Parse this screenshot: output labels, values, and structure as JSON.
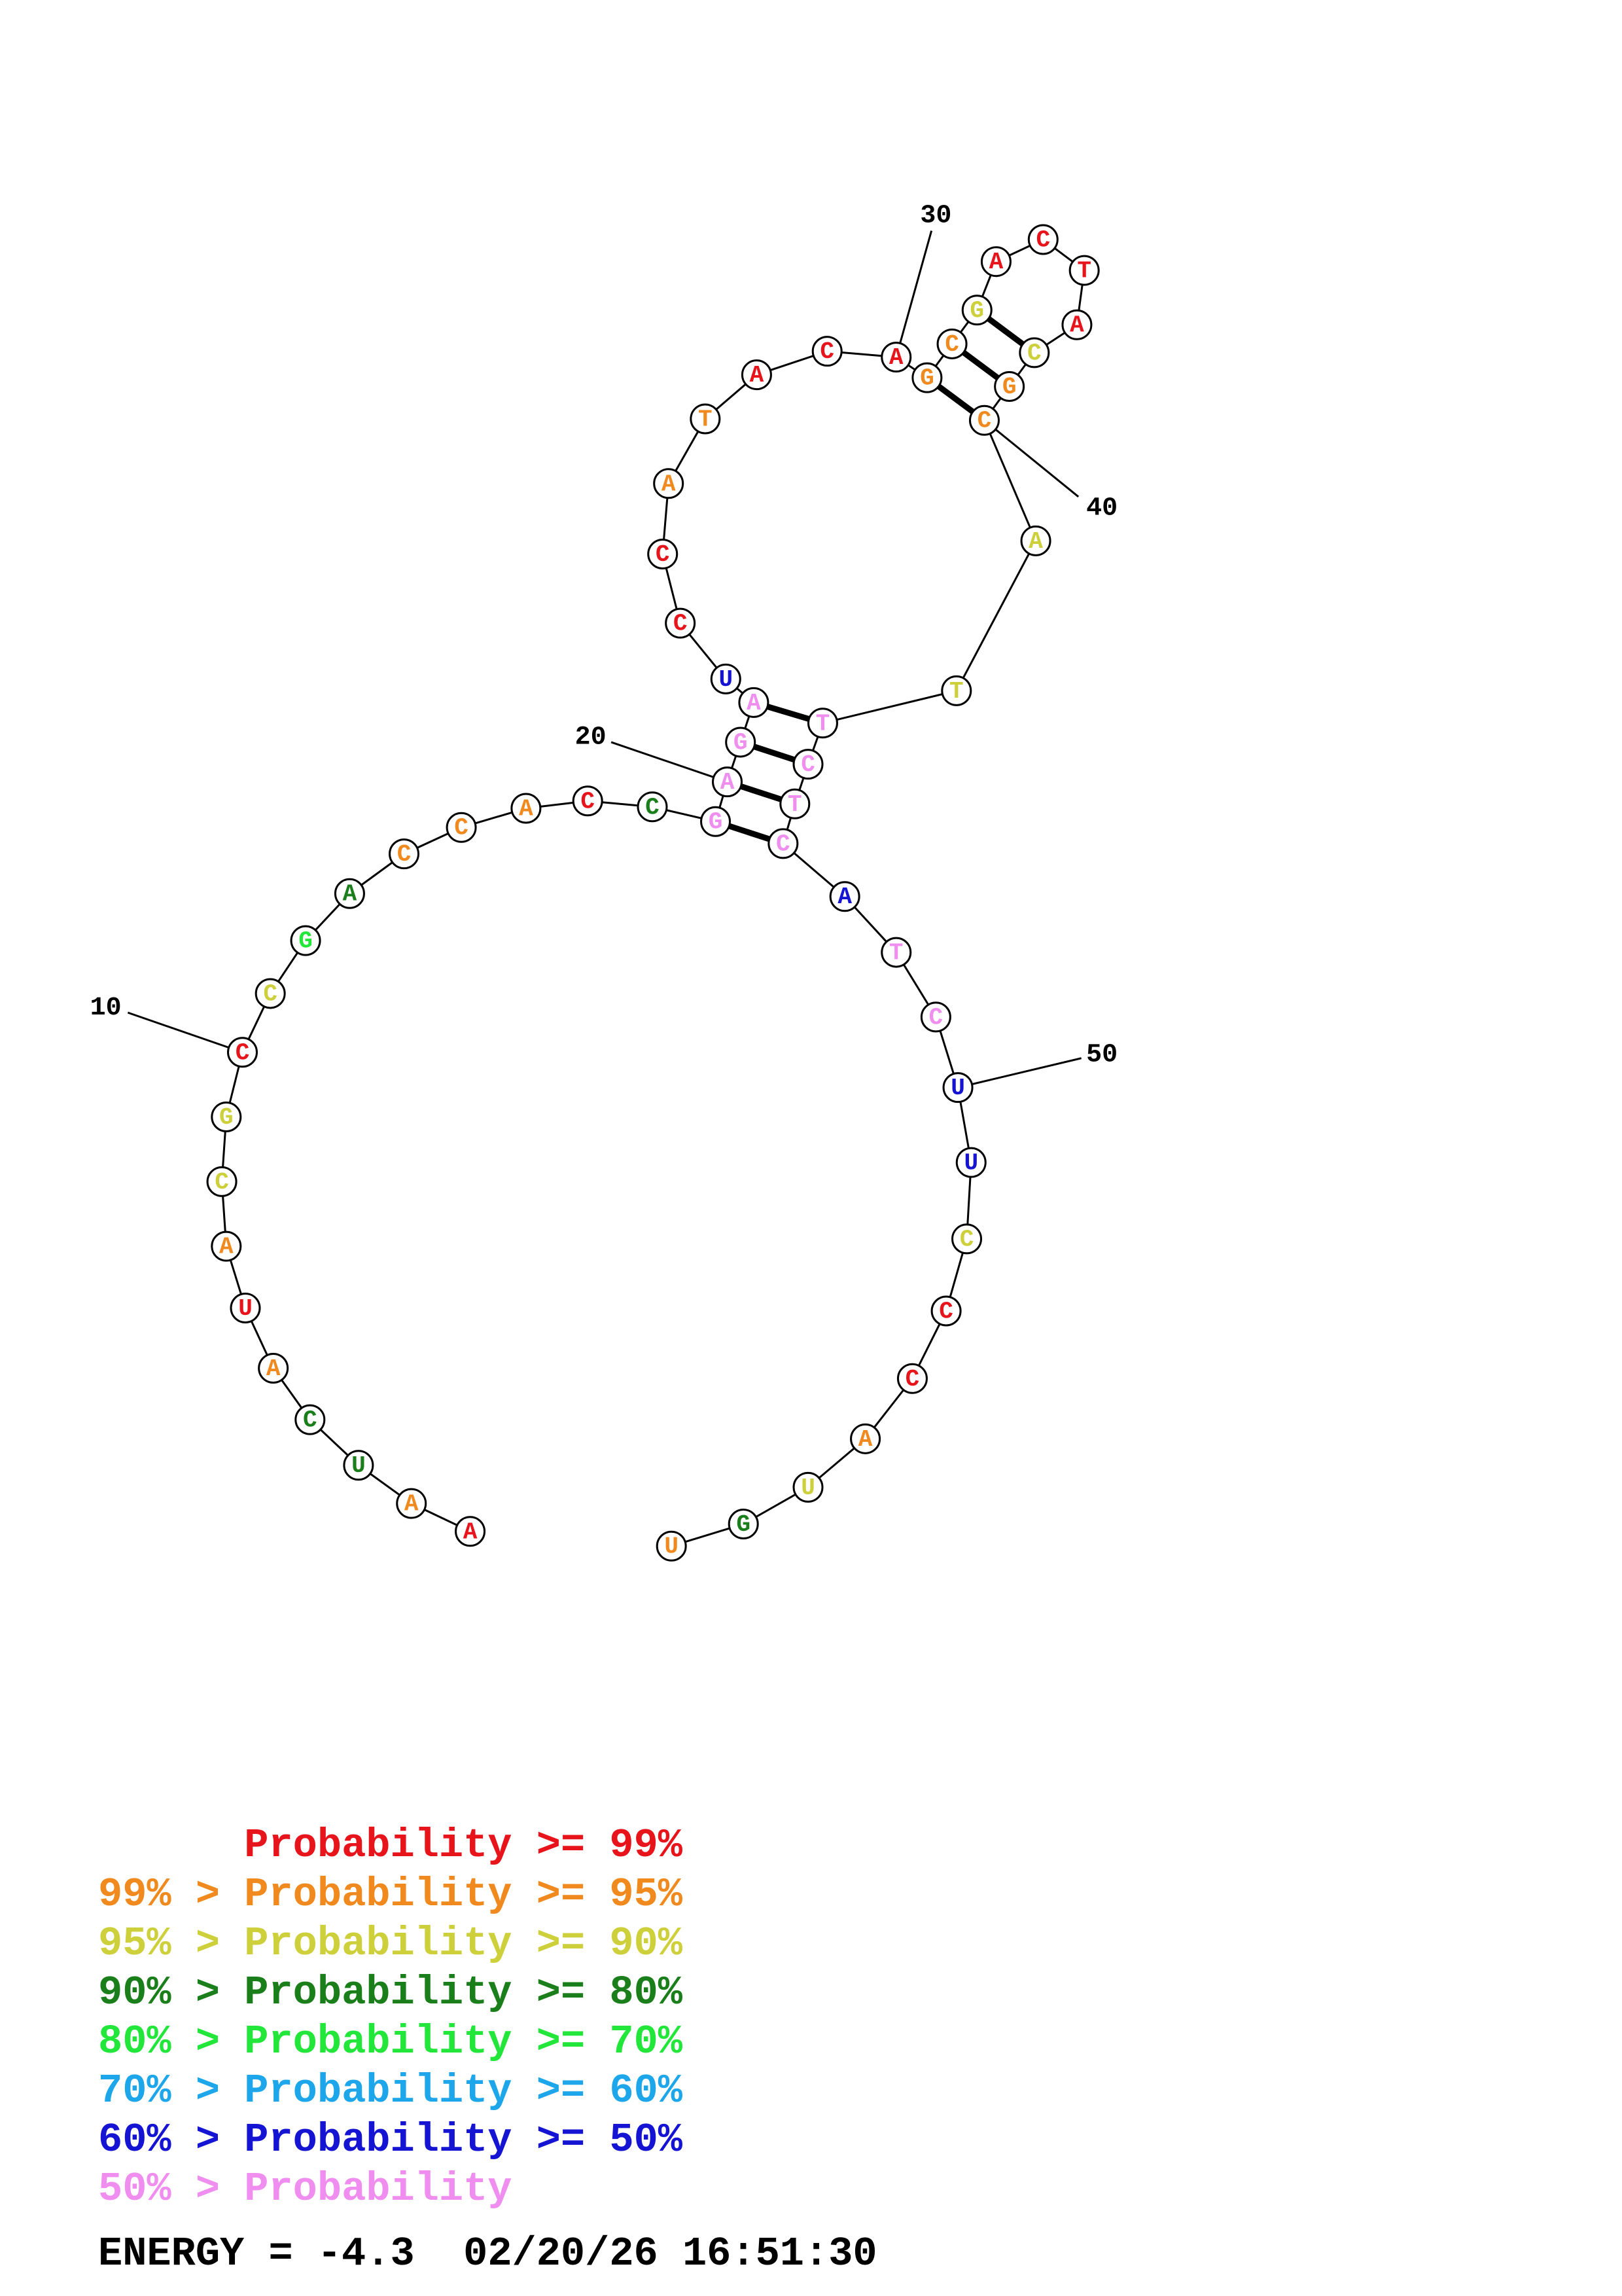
{
  "tiers": {
    "99": "#e8141c",
    "95": "#f08a1e",
    "90": "#cdd03a",
    "80": "#1a7f1a",
    "70": "#22e63a",
    "60": "#1ea6ea",
    "50": "#1414d2",
    "lt50": "#f08ef0"
  },
  "nucleotides": [
    {
      "index": 1,
      "base": "A",
      "tier": "99"
    },
    {
      "index": 2,
      "base": "A",
      "tier": "95"
    },
    {
      "index": 3,
      "base": "U",
      "tier": "80"
    },
    {
      "index": 4,
      "base": "C",
      "tier": "80"
    },
    {
      "index": 5,
      "base": "A",
      "tier": "95"
    },
    {
      "index": 6,
      "base": "U",
      "tier": "99"
    },
    {
      "index": 7,
      "base": "A",
      "tier": "95"
    },
    {
      "index": 8,
      "base": "C",
      "tier": "90"
    },
    {
      "index": 9,
      "base": "G",
      "tier": "90"
    },
    {
      "index": 10,
      "base": "C",
      "tier": "99"
    },
    {
      "index": 11,
      "base": "C",
      "tier": "90"
    },
    {
      "index": 12,
      "base": "G",
      "tier": "70"
    },
    {
      "index": 13,
      "base": "A",
      "tier": "80"
    },
    {
      "index": 14,
      "base": "C",
      "tier": "95"
    },
    {
      "index": 15,
      "base": "C",
      "tier": "95"
    },
    {
      "index": 16,
      "base": "A",
      "tier": "95"
    },
    {
      "index": 17,
      "base": "C",
      "tier": "99"
    },
    {
      "index": 18,
      "base": "C",
      "tier": "80"
    },
    {
      "index": 19,
      "base": "G",
      "tier": "lt50"
    },
    {
      "index": 20,
      "base": "A",
      "tier": "lt50"
    },
    {
      "index": 21,
      "base": "G",
      "tier": "lt50"
    },
    {
      "index": 22,
      "base": "A",
      "tier": "lt50"
    },
    {
      "index": 23,
      "base": "U",
      "tier": "50"
    },
    {
      "index": 24,
      "base": "C",
      "tier": "99"
    },
    {
      "index": 25,
      "base": "C",
      "tier": "99"
    },
    {
      "index": 26,
      "base": "A",
      "tier": "95"
    },
    {
      "index": 27,
      "base": "T",
      "tier": "95"
    },
    {
      "index": 28,
      "base": "A",
      "tier": "99"
    },
    {
      "index": 29,
      "base": "C",
      "tier": "99"
    },
    {
      "index": 30,
      "base": "A",
      "tier": "99"
    },
    {
      "index": 31,
      "base": "G",
      "tier": "95"
    },
    {
      "index": 32,
      "base": "C",
      "tier": "95"
    },
    {
      "index": 33,
      "base": "G",
      "tier": "90"
    },
    {
      "index": 34,
      "base": "A",
      "tier": "99"
    },
    {
      "index": 35,
      "base": "C",
      "tier": "99"
    },
    {
      "index": 36,
      "base": "T",
      "tier": "99"
    },
    {
      "index": 37,
      "base": "A",
      "tier": "99"
    },
    {
      "index": 38,
      "base": "C",
      "tier": "90"
    },
    {
      "index": 39,
      "base": "G",
      "tier": "95"
    },
    {
      "index": 40,
      "base": "C",
      "tier": "95"
    },
    {
      "index": 41,
      "base": "A",
      "tier": "90"
    },
    {
      "index": 42,
      "base": "T",
      "tier": "90"
    },
    {
      "index": 43,
      "base": "T",
      "tier": "lt50"
    },
    {
      "index": 44,
      "base": "C",
      "tier": "lt50"
    },
    {
      "index": 45,
      "base": "T",
      "tier": "lt50"
    },
    {
      "index": 46,
      "base": "C",
      "tier": "lt50"
    },
    {
      "index": 47,
      "base": "A",
      "tier": "50"
    },
    {
      "index": 48,
      "base": "T",
      "tier": "lt50"
    },
    {
      "index": 49,
      "base": "C",
      "tier": "lt50"
    },
    {
      "index": 50,
      "base": "U",
      "tier": "50"
    },
    {
      "index": 51,
      "base": "U",
      "tier": "50"
    },
    {
      "index": 52,
      "base": "C",
      "tier": "90"
    },
    {
      "index": 53,
      "base": "C",
      "tier": "99"
    },
    {
      "index": 54,
      "base": "C",
      "tier": "99"
    },
    {
      "index": 55,
      "base": "A",
      "tier": "95"
    },
    {
      "index": 56,
      "base": "U",
      "tier": "90"
    },
    {
      "index": 57,
      "base": "G",
      "tier": "80"
    },
    {
      "index": 58,
      "base": "U",
      "tier": "95"
    }
  ],
  "pairs": [
    [
      19,
      46
    ],
    [
      20,
      45
    ],
    [
      21,
      44
    ],
    [
      22,
      43
    ],
    [
      31,
      40
    ],
    [
      32,
      39
    ],
    [
      33,
      38
    ]
  ],
  "position_labels": [
    {
      "index": 10,
      "text": "10"
    },
    {
      "index": 20,
      "text": "20"
    },
    {
      "index": 30,
      "text": "30"
    },
    {
      "index": 40,
      "text": "40"
    },
    {
      "index": 50,
      "text": "50"
    }
  ],
  "legend": [
    {
      "left": "",
      "sep": "",
      "mid": "Probability",
      "op": " >= ",
      "right": "99%",
      "tier": "99"
    },
    {
      "left": "99%",
      "sep": " > ",
      "mid": "Probability",
      "op": " >= ",
      "right": "95%",
      "tier": "95"
    },
    {
      "left": "95%",
      "sep": " > ",
      "mid": "Probability",
      "op": " >= ",
      "right": "90%",
      "tier": "90"
    },
    {
      "left": "90%",
      "sep": " > ",
      "mid": "Probability",
      "op": " >= ",
      "right": "80%",
      "tier": "80"
    },
    {
      "left": "80%",
      "sep": " > ",
      "mid": "Probability",
      "op": " >= ",
      "right": "70%",
      "tier": "70"
    },
    {
      "left": "70%",
      "sep": " > ",
      "mid": "Probability",
      "op": " >= ",
      "right": "60%",
      "tier": "60"
    },
    {
      "left": "60%",
      "sep": " > ",
      "mid": "Probability",
      "op": " >= ",
      "right": "50%",
      "tier": "50"
    },
    {
      "left": "50%",
      "sep": " > ",
      "mid": "Probability",
      "op": "",
      "right": "",
      "tier": "lt50"
    }
  ],
  "footer": {
    "energy": "ENERGY = -4.3",
    "timestamp": "02/20/26 16:51:30"
  }
}
